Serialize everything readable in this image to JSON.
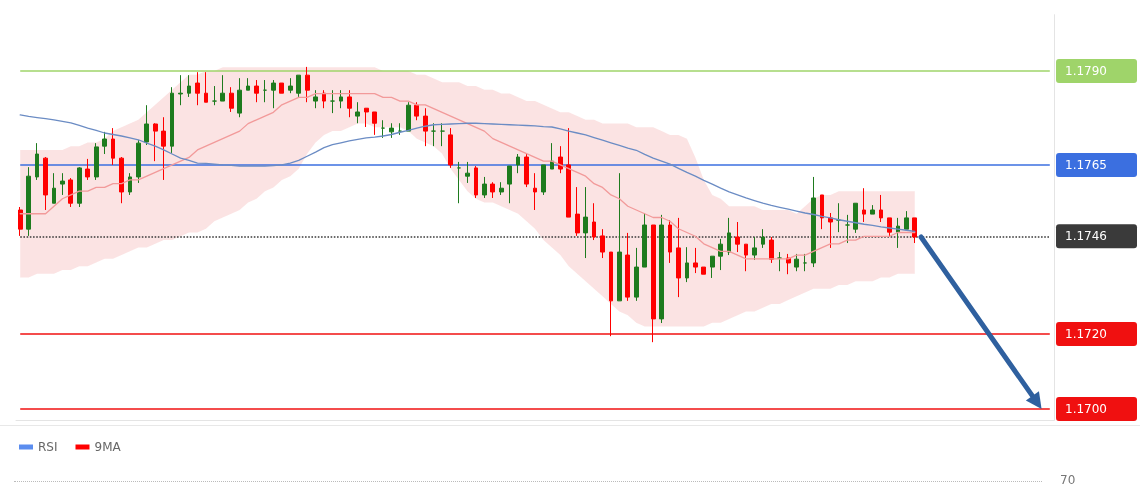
{
  "chart_data": [
    {
      "type": "candlestick",
      "categories": [
        null,
        null,
        null,
        null,
        null,
        null,
        null,
        null,
        null,
        null,
        null,
        null,
        null,
        null,
        null,
        null,
        null,
        null,
        null,
        null,
        null,
        null,
        null,
        null,
        null,
        null,
        null,
        null,
        null,
        null,
        null,
        null,
        null,
        null,
        null,
        null,
        null,
        null,
        null,
        null,
        null,
        null,
        null,
        null,
        null,
        null,
        null,
        null,
        null,
        null,
        null,
        null,
        null,
        null,
        null,
        null,
        null,
        null,
        null,
        null,
        null,
        null,
        null,
        null,
        null,
        null,
        null,
        null,
        null,
        null,
        null,
        null,
        null,
        null,
        null,
        null,
        null,
        null,
        null,
        null,
        null,
        null,
        null,
        null,
        null,
        null,
        null,
        null,
        null,
        null,
        null,
        null,
        null,
        null,
        null,
        null,
        null,
        null,
        null,
        null,
        null,
        null,
        null,
        null,
        null,
        null,
        null
      ],
      "ohlc": [
        [
          1.1753,
          1.17538,
          1.17461,
          1.17479
        ],
        [
          1.17479,
          1.17644,
          1.17461,
          1.1762
        ],
        [
          1.17618,
          1.17708,
          1.1761,
          1.17679
        ],
        [
          1.17668,
          1.17671,
          1.1753,
          1.1757
        ],
        [
          1.17548,
          1.17628,
          1.17548,
          1.17588
        ],
        [
          1.17599,
          1.17628,
          1.1757,
          1.17607
        ],
        [
          1.1761,
          1.17615,
          1.17538,
          1.17548
        ],
        [
          1.17548,
          1.17644,
          1.17538,
          1.17642
        ],
        [
          1.17639,
          1.17666,
          1.1761,
          1.17618
        ],
        [
          1.17618,
          1.17708,
          1.1761,
          1.17698
        ],
        [
          1.177,
          1.17738,
          1.17679,
          1.17719
        ],
        [
          1.17719,
          1.17748,
          1.1765,
          1.17668
        ],
        [
          1.17668,
          1.17671,
          1.17548,
          1.17578
        ],
        [
          1.17578,
          1.17628,
          1.1757,
          1.17618
        ],
        [
          1.17618,
          1.17716,
          1.17602,
          1.17708
        ],
        [
          1.17711,
          1.17809,
          1.17703,
          1.17759
        ],
        [
          1.17759,
          1.17761,
          1.1766,
          1.1774
        ],
        [
          1.1774,
          1.17777,
          1.1761,
          1.177
        ],
        [
          1.177,
          1.17857,
          1.17682,
          1.17841
        ],
        [
          1.17839,
          1.17889,
          1.17809,
          1.17841
        ],
        [
          1.17841,
          1.17889,
          1.17831,
          1.1786
        ],
        [
          1.17868,
          1.17897,
          1.17809,
          1.17841
        ],
        [
          1.17841,
          1.17897,
          1.17817,
          1.17817
        ],
        [
          1.1782,
          1.1786,
          1.17809,
          1.1782
        ],
        [
          1.1782,
          1.17889,
          1.1782,
          1.17841
        ],
        [
          1.17841,
          1.17857,
          1.17791,
          1.17801
        ],
        [
          1.17788,
          1.17881,
          1.17777,
          1.17849
        ],
        [
          1.17849,
          1.17881,
          1.17849,
          1.1786
        ],
        [
          1.1786,
          1.17876,
          1.17817,
          1.17841
        ],
        [
          1.17849,
          1.17876,
          1.17817,
          1.17849
        ],
        [
          1.17849,
          1.17876,
          1.17801,
          1.17868
        ],
        [
          1.17868,
          1.17868,
          1.17841,
          1.17841
        ],
        [
          1.17849,
          1.17881,
          1.17841,
          1.1786
        ],
        [
          1.17841,
          1.17889,
          1.17831,
          1.17889
        ],
        [
          1.17889,
          1.17911,
          1.17817,
          1.17849
        ],
        [
          1.1782,
          1.17849,
          1.17801,
          1.17831
        ],
        [
          1.17841,
          1.17849,
          1.17801,
          1.1782
        ],
        [
          1.1782,
          1.17849,
          1.17788,
          1.1782
        ],
        [
          1.1782,
          1.17849,
          1.17801,
          1.17831
        ],
        [
          1.17831,
          1.17849,
          1.17777,
          1.17801
        ],
        [
          1.1778,
          1.17817,
          1.17761,
          1.17791
        ],
        [
          1.17801,
          1.17801,
          1.17751,
          1.17791
        ],
        [
          1.17791,
          1.17791,
          1.1773,
          1.17761
        ],
        [
          1.17748,
          1.17769,
          1.17722,
          1.17748
        ],
        [
          1.17738,
          1.17761,
          1.17722,
          1.17748
        ],
        [
          1.1774,
          1.17761,
          1.1773,
          1.1774
        ],
        [
          1.1774,
          1.17817,
          1.1774,
          1.17809
        ],
        [
          1.17809,
          1.17817,
          1.17769,
          1.1778
        ],
        [
          1.1778,
          1.17801,
          1.177,
          1.1774
        ],
        [
          1.1774,
          1.17761,
          1.177,
          1.1774
        ],
        [
          1.1774,
          1.17761,
          1.177,
          1.1774
        ],
        [
          1.1773,
          1.17748,
          1.17642,
          1.1765
        ],
        [
          1.17642,
          1.17658,
          1.17548,
          1.17642
        ],
        [
          1.1762,
          1.17658,
          1.17602,
          1.17628
        ],
        [
          1.17642,
          1.17647,
          1.17562,
          1.1757
        ],
        [
          1.1757,
          1.17618,
          1.17562,
          1.17599
        ],
        [
          1.17599,
          1.17604,
          1.17562,
          1.17578
        ],
        [
          1.17578,
          1.17604,
          1.1757,
          1.17588
        ],
        [
          1.17599,
          1.17647,
          1.17548,
          1.17647
        ],
        [
          1.1765,
          1.17679,
          1.17628,
          1.17671
        ],
        [
          1.17671,
          1.17679,
          1.17591,
          1.17599
        ],
        [
          1.17588,
          1.17628,
          1.1753,
          1.17578
        ],
        [
          1.17578,
          1.1765,
          1.1757,
          1.1765
        ],
        [
          1.17639,
          1.17708,
          1.17639,
          1.1766
        ],
        [
          1.17671,
          1.177,
          1.17628,
          1.17639
        ],
        [
          1.1765,
          1.17748,
          1.17511,
          1.17511
        ],
        [
          1.17519,
          1.17591,
          1.17461,
          1.17469
        ],
        [
          1.17469,
          1.17591,
          1.17402,
          1.17511
        ],
        [
          1.17498,
          1.17548,
          1.1745,
          1.17458
        ],
        [
          1.17461,
          1.17479,
          1.17402,
          1.17418
        ],
        [
          1.17418,
          1.17418,
          1.17194,
          1.17288
        ],
        [
          1.17288,
          1.17628,
          1.17288,
          1.17418
        ],
        [
          1.1741,
          1.17469,
          1.17288,
          1.17298
        ],
        [
          1.17298,
          1.17429,
          1.17288,
          1.17378
        ],
        [
          1.17378,
          1.17522,
          1.17378,
          1.1749
        ],
        [
          1.1749,
          1.1749,
          1.17178,
          1.1724
        ],
        [
          1.1724,
          1.17517,
          1.17229,
          1.1749
        ],
        [
          1.1749,
          1.17503,
          1.17389,
          1.17418
        ],
        [
          1.17429,
          1.17509,
          1.17298,
          1.17349
        ],
        [
          1.17349,
          1.17431,
          1.17338,
          1.17389
        ],
        [
          1.17389,
          1.17429,
          1.17362,
          1.17378
        ],
        [
          1.17378,
          1.17378,
          1.17359,
          1.17359
        ],
        [
          1.17378,
          1.17407,
          1.17349,
          1.17407
        ],
        [
          1.17407,
          1.17453,
          1.1737,
          1.17439
        ],
        [
          1.17418,
          1.17509,
          1.1741,
          1.17469
        ],
        [
          1.17458,
          1.17498,
          1.17418,
          1.17439
        ],
        [
          1.17439,
          1.17439,
          1.17367,
          1.1741
        ],
        [
          1.1741,
          1.17458,
          1.17397,
          1.17429
        ],
        [
          1.17439,
          1.17479,
          1.17429,
          1.17458
        ],
        [
          1.1745,
          1.17458,
          1.17389,
          1.17399
        ],
        [
          1.17402,
          1.17418,
          1.17367,
          1.17402
        ],
        [
          1.17402,
          1.17413,
          1.17359,
          1.17389
        ],
        [
          1.17378,
          1.17413,
          1.17367,
          1.17399
        ],
        [
          1.17389,
          1.17413,
          1.17367,
          1.17389
        ],
        [
          1.17389,
          1.17618,
          1.17378,
          1.17562
        ],
        [
          1.1757,
          1.1757,
          1.17479,
          1.17509
        ],
        [
          1.17509,
          1.17522,
          1.17429,
          1.17498
        ],
        [
          1.17503,
          1.17548,
          1.17471,
          1.17503
        ],
        [
          1.1749,
          1.17517,
          1.17442,
          1.1749
        ],
        [
          1.17479,
          1.17548,
          1.17469,
          1.17548
        ],
        [
          1.1753,
          1.17588,
          1.17498,
          1.17519
        ],
        [
          1.17519,
          1.17543,
          1.17519,
          1.1753
        ],
        [
          1.1753,
          1.1757,
          1.17498,
          1.17509
        ],
        [
          1.17509,
          1.17509,
          1.17458,
          1.17471
        ],
        [
          1.17471,
          1.17509,
          1.17429,
          1.17487
        ],
        [
          1.17479,
          1.17527,
          1.17479,
          1.17509
        ],
        [
          1.17509,
          1.17509,
          1.17442,
          1.17458
        ]
      ],
      "colors": [
        "#ff0000",
        "#1e7b1e",
        "#1e7b1e",
        "#ff0000",
        "#1e7b1e",
        "#1e7b1e",
        "#ff0000",
        "#1e7b1e",
        "#ff0000",
        "#1e7b1e",
        "#1e7b1e",
        "#ff0000",
        "#ff0000",
        "#1e7b1e",
        "#1e7b1e",
        "#1e7b1e",
        "#ff0000",
        "#ff0000",
        "#1e7b1e",
        "#1e7b1e",
        "#1e7b1e",
        "#ff0000",
        "#ff0000",
        "#1e7b1e",
        "#1e7b1e",
        "#ff0000",
        "#1e7b1e",
        "#1e7b1e",
        "#ff0000",
        "#1e7b1e",
        "#1e7b1e",
        "#ff0000",
        "#1e7b1e",
        "#1e7b1e",
        "#ff0000",
        "#1e7b1e",
        "#ff0000",
        "#1e7b1e",
        "#1e7b1e",
        "#ff0000",
        "#1e7b1e",
        "#ff0000",
        "#ff0000",
        "#1e7b1e",
        "#1e7b1e",
        "#1e7b1e",
        "#1e7b1e",
        "#ff0000",
        "#ff0000",
        "#1e7b1e",
        "#1e7b1e",
        "#ff0000",
        "#1e7b1e",
        "#1e7b1e",
        "#ff0000",
        "#1e7b1e",
        "#ff0000",
        "#1e7b1e",
        "#1e7b1e",
        "#1e7b1e",
        "#ff0000",
        "#ff0000",
        "#1e7b1e",
        "#1e7b1e",
        "#ff0000",
        "#ff0000",
        "#ff0000",
        "#1e7b1e",
        "#ff0000",
        "#ff0000",
        "#ff0000",
        "#1e7b1e",
        "#ff0000",
        "#1e7b1e",
        "#1e7b1e",
        "#ff0000",
        "#1e7b1e",
        "#ff0000",
        "#ff0000",
        "#1e7b1e",
        "#ff0000",
        "#ff0000",
        "#1e7b1e",
        "#1e7b1e",
        "#1e7b1e",
        "#ff0000",
        "#ff0000",
        "#1e7b1e",
        "#1e7b1e",
        "#ff0000",
        "#1e7b1e",
        "#ff0000",
        "#1e7b1e",
        "#1e7b1e",
        "#1e7b1e",
        "#ff0000",
        "#ff0000",
        "#1e7b1e",
        "#1e7b1e",
        "#1e7b1e",
        "#ff0000",
        "#1e7b1e",
        "#ff0000",
        "#ff0000",
        "#1e7b1e",
        "#1e7b1e",
        "#ff0000"
      ],
      "series": [
        {
          "type": "line",
          "color": "#f29a9a",
          "values": [
            1.1752,
            1.1752,
            1.1752,
            1.1752,
            1.1754,
            1.1756,
            1.1757,
            1.1758,
            1.1758,
            1.1759,
            1.1759,
            1.176,
            1.176,
            1.1761,
            1.1761,
            1.1762,
            1.1763,
            1.1764,
            1.1765,
            1.1766,
            1.1767,
            1.1769,
            1.177,
            1.1771,
            1.1772,
            1.1773,
            1.1774,
            1.1776,
            1.1777,
            1.1778,
            1.1779,
            1.1781,
            1.1782,
            1.1783,
            1.1783,
            1.1784,
            1.1784,
            1.1784,
            1.1784,
            1.1784,
            1.1784,
            1.1784,
            1.1784,
            1.1783,
            1.1783,
            1.1782,
            1.1782,
            1.1781,
            1.1781,
            1.178,
            1.1779,
            1.1778,
            1.1777,
            1.1776,
            1.1775,
            1.1774,
            1.1772,
            1.1771,
            1.177,
            1.1769,
            1.1768,
            1.1767,
            1.1766,
            1.1766,
            1.1765,
            1.1764,
            1.1763,
            1.1762,
            1.176,
            1.1759,
            1.1757,
            1.1756,
            1.1754,
            1.1753,
            1.1752,
            1.1751,
            1.1751,
            1.175,
            1.1748,
            1.1747,
            1.1746,
            1.1744,
            1.1743,
            1.1742,
            1.1742,
            1.1741,
            1.174,
            1.174,
            1.174,
            1.174,
            1.174,
            1.174,
            1.1741,
            1.1741,
            1.1742,
            1.1743,
            1.1744,
            1.1744,
            1.1745,
            1.1745,
            1.1746,
            1.1746,
            1.1746,
            1.1746,
            1.1747,
            1.1747,
            1.1747
          ],
          "upper": [
            1.1769,
            1.1769,
            1.1769,
            1.1769,
            1.1769,
            1.1769,
            1.177,
            1.177,
            1.1771,
            1.1771,
            1.1772,
            1.1774,
            1.1775,
            1.1776,
            1.1777,
            1.1779,
            1.1781,
            1.1783,
            1.1785,
            1.1787,
            1.1789,
            1.1789,
            1.179,
            1.179,
            1.1791,
            1.1791,
            1.1791,
            1.1791,
            1.1791,
            1.1791,
            1.1791,
            1.1791,
            1.1791,
            1.1791,
            1.1791,
            1.1791,
            1.1791,
            1.1791,
            1.1791,
            1.1791,
            1.1791,
            1.1791,
            1.1791,
            1.179,
            1.179,
            1.179,
            1.179,
            1.1789,
            1.1789,
            1.1788,
            1.1787,
            1.1787,
            1.1787,
            1.1786,
            1.1786,
            1.1785,
            1.1785,
            1.1784,
            1.1784,
            1.1783,
            1.1782,
            1.1782,
            1.1781,
            1.178,
            1.1779,
            1.1779,
            1.1778,
            1.1777,
            1.1777,
            1.1776,
            1.1776,
            1.1776,
            1.1776,
            1.1775,
            1.1775,
            1.1775,
            1.1774,
            1.1773,
            1.1773,
            1.1772,
            1.1767,
            1.1761,
            1.1757,
            1.1756,
            1.1754,
            1.1754,
            1.1754,
            1.1754,
            1.1753,
            1.1753,
            1.1753,
            1.1753,
            1.1752,
            1.1754,
            1.1756,
            1.1757,
            1.1757,
            1.1758,
            1.1758,
            1.1758,
            1.1758,
            1.1758,
            1.1758,
            1.1758,
            1.1758,
            1.1758,
            1.1758
          ],
          "lower": [
            1.1735,
            1.1735,
            1.1736,
            1.1736,
            1.1736,
            1.1737,
            1.1737,
            1.1738,
            1.1738,
            1.1739,
            1.174,
            1.174,
            1.1741,
            1.1742,
            1.1743,
            1.1743,
            1.1744,
            1.1745,
            1.1745,
            1.1746,
            1.1747,
            1.1747,
            1.1748,
            1.175,
            1.1751,
            1.1752,
            1.1753,
            1.1755,
            1.1756,
            1.1758,
            1.1759,
            1.1761,
            1.1762,
            1.1764,
            1.1768,
            1.1771,
            1.1773,
            1.1774,
            1.1774,
            1.1775,
            1.1776,
            1.1776,
            1.1775,
            1.1775,
            1.1775,
            1.1775,
            1.1774,
            1.1772,
            1.1771,
            1.177,
            1.1768,
            1.1764,
            1.1761,
            1.1758,
            1.1756,
            1.1755,
            1.1755,
            1.1754,
            1.1753,
            1.1752,
            1.175,
            1.1748,
            1.1745,
            1.1743,
            1.1741,
            1.1738,
            1.1736,
            1.1734,
            1.1732,
            1.173,
            1.1728,
            1.1726,
            1.1725,
            1.1723,
            1.1722,
            1.1722,
            1.1722,
            1.1722,
            1.1722,
            1.1722,
            1.1722,
            1.1722,
            1.1723,
            1.1723,
            1.1724,
            1.1725,
            1.1726,
            1.1726,
            1.1727,
            1.1728,
            1.1728,
            1.1729,
            1.173,
            1.1731,
            1.1732,
            1.1732,
            1.1732,
            1.1733,
            1.1733,
            1.1734,
            1.1734,
            1.1734,
            1.1735,
            1.1735,
            1.1736,
            1.1736,
            1.1736
          ]
        },
        {
          "type": "line",
          "color": "#6b8cc4",
          "values": [
            1.17783,
            1.17779,
            1.17776,
            1.17773,
            1.1777,
            1.17766,
            1.17762,
            1.17755,
            1.17748,
            1.17742,
            1.17735,
            1.17731,
            1.17727,
            1.17722,
            1.17717,
            1.17708,
            1.177,
            1.1769,
            1.17679,
            1.17668,
            1.17662,
            1.17655,
            1.17654,
            1.17652,
            1.1765,
            1.17649,
            1.17647,
            1.17647,
            1.17647,
            1.17647,
            1.17648,
            1.1765,
            1.17655,
            1.17662,
            1.17673,
            1.17684,
            1.17696,
            1.17704,
            1.17709,
            1.17714,
            1.17718,
            1.17722,
            1.17724,
            1.17727,
            1.17731,
            1.17737,
            1.17742,
            1.17748,
            1.17753,
            1.17757,
            1.17758,
            1.17759,
            1.1776,
            1.17761,
            1.17761,
            1.1776,
            1.17759,
            1.17758,
            1.17757,
            1.17756,
            1.17755,
            1.17754,
            1.17752,
            1.17751,
            1.17746,
            1.1774,
            1.17735,
            1.1773,
            1.17723,
            1.17716,
            1.17709,
            1.17702,
            1.17695,
            1.17689,
            1.17678,
            1.17668,
            1.1766,
            1.17652,
            1.17641,
            1.1763,
            1.1762,
            1.17609,
            1.17599,
            1.17588,
            1.17578,
            1.1757,
            1.17562,
            1.17555,
            1.17548,
            1.17542,
            1.17537,
            1.17532,
            1.17527,
            1.17522,
            1.17518,
            1.17513,
            1.17509,
            1.17504,
            1.175,
            1.17496,
            1.17492,
            1.17489,
            1.17485,
            1.17482,
            1.17479,
            1.17476,
            1.17473
          ]
        }
      ],
      "ref_lines": [
        {
          "axis": "y",
          "value": 1.179,
          "color": "#9fd46a",
          "line_style": "solid"
        },
        {
          "axis": "y",
          "value": 1.1765,
          "color": "#3b6fe0",
          "line_style": "solid"
        },
        {
          "axis": "y",
          "value": 1.1746,
          "color": "#3a3a3a",
          "line_style": "dotted"
        },
        {
          "axis": "y",
          "value": 1.172,
          "color": "#f01010",
          "line_style": "solid"
        },
        {
          "axis": "y",
          "value": 1.17,
          "color": "#f01010",
          "line_style": "solid"
        }
      ],
      "ylim": [
        1.1697,
        1.1805
      ],
      "yticks": [
        {
          "value": 1.17,
          "label": "1.1700"
        },
        {
          "value": 1.172,
          "label": "1.1720"
        },
        {
          "value": 1.1746,
          "label": "1.1746"
        },
        {
          "value": 1.1765,
          "label": "1.1765"
        },
        {
          "value": 1.179,
          "label": "1.1790"
        }
      ],
      "tick_labels": "y"
    },
    {
      "type": "other",
      "series": [
        {
          "name": "RSI",
          "color": "#5b8def"
        },
        {
          "name": "9MA",
          "color": "#ff0000"
        }
      ],
      "annotations": [
        "70"
      ],
      "legend": "top left"
    }
  ]
}
